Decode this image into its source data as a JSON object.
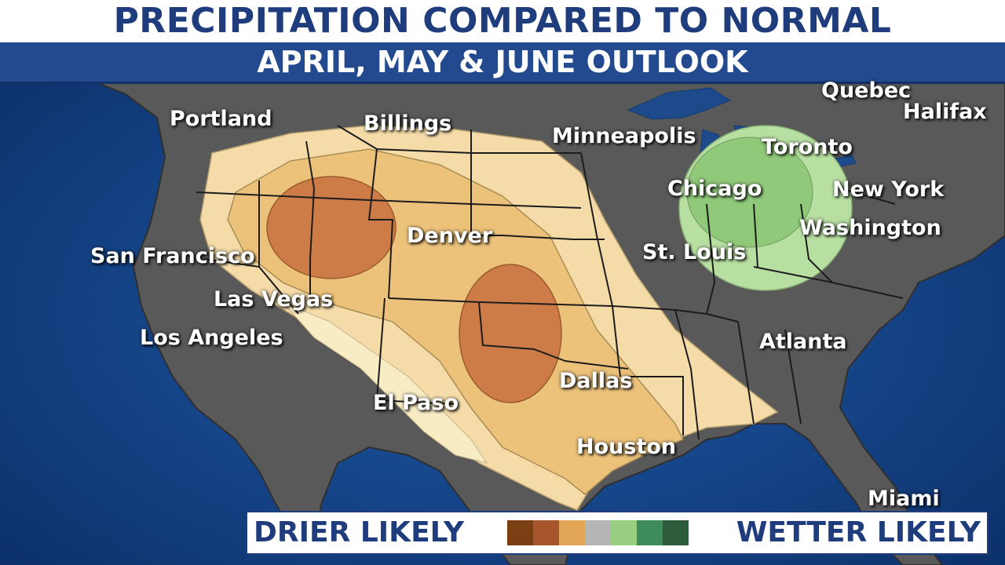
{
  "header": {
    "title": "PRECIPITATION COMPARED TO NORMAL",
    "subtitle": "APRIL, MAY & JUNE OUTLOOK"
  },
  "cities": [
    {
      "id": "portland",
      "name": "Portland"
    },
    {
      "id": "billings",
      "name": "Billings"
    },
    {
      "id": "minneapolis",
      "name": "Minneapolis"
    },
    {
      "id": "quebec",
      "name": "Quebec"
    },
    {
      "id": "halifax",
      "name": "Halifax"
    },
    {
      "id": "toronto",
      "name": "Toronto"
    },
    {
      "id": "chicago",
      "name": "Chicago"
    },
    {
      "id": "new-york",
      "name": "New York"
    },
    {
      "id": "washington",
      "name": "Washington"
    },
    {
      "id": "denver",
      "name": "Denver"
    },
    {
      "id": "st-louis",
      "name": "St. Louis"
    },
    {
      "id": "san-francisco",
      "name": "San Francisco"
    },
    {
      "id": "las-vegas",
      "name": "Las Vegas"
    },
    {
      "id": "los-angeles",
      "name": "Los Angeles"
    },
    {
      "id": "atlanta",
      "name": "Atlanta"
    },
    {
      "id": "dallas",
      "name": "Dallas"
    },
    {
      "id": "el-paso",
      "name": "El Paso"
    },
    {
      "id": "houston",
      "name": "Houston"
    },
    {
      "id": "miami",
      "name": "Miami"
    }
  ],
  "legend": {
    "left_label": "DRIER LIKELY",
    "right_label": "WETTER LIKELY",
    "colors": [
      "#7a3f12",
      "#a6552c",
      "#e2a556",
      "#b5b5b5",
      "#98cf80",
      "#3e8c5c",
      "#2d5c3c"
    ]
  },
  "colors": {
    "ocean": "#0f3a78",
    "land": "#595959",
    "lakes": "#1d4a8a",
    "dry_light": "#f4dba8",
    "dry_pale": "#f7e8b8",
    "dry_medium": "#ecc27a",
    "dry_strong": "#cd7c48",
    "wet_light": "#b8dfa2",
    "wet_medium": "#90c97a"
  }
}
